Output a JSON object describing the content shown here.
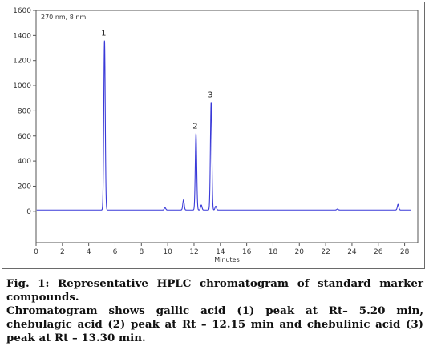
{
  "chart_data": {
    "type": "line",
    "annotation": "270 nm, 8 nm",
    "xlabel": "Minutes",
    "ylabel": "",
    "xlim": [
      0,
      29
    ],
    "ylim": [
      -250,
      1600
    ],
    "x_ticks": [
      0,
      2,
      4,
      6,
      8,
      10,
      12,
      14,
      16,
      18,
      20,
      22,
      24,
      26,
      28
    ],
    "y_ticks": [
      0,
      200,
      400,
      600,
      800,
      1000,
      1200,
      1400,
      1600
    ],
    "grid": false,
    "baseline": 10,
    "peaks": [
      {
        "label": "1",
        "rt": 5.2,
        "height": 1350
      },
      {
        "label": "",
        "rt": 9.8,
        "height": 18
      },
      {
        "label": "",
        "rt": 11.2,
        "height": 80
      },
      {
        "label": "2",
        "rt": 12.15,
        "height": 610
      },
      {
        "label": "",
        "rt": 12.55,
        "height": 40
      },
      {
        "label": "3",
        "rt": 13.3,
        "height": 860
      },
      {
        "label": "",
        "rt": 13.65,
        "height": 30
      },
      {
        "label": "",
        "rt": 22.9,
        "height": 8
      },
      {
        "label": "",
        "rt": 27.5,
        "height": 45
      }
    ],
    "line_color": "#3a3ad8"
  },
  "caption": {
    "title": "Fig. 1:  Representative HPLC chromatogram of standard marker compounds.",
    "description": "Chromatogram shows gallic acid (1) peak at Rt– 5.20 min, chebulagic acid (2) peak at Rt – 12.15 min and chebulinic acid (3) peak at Rt – 13.30 min."
  }
}
